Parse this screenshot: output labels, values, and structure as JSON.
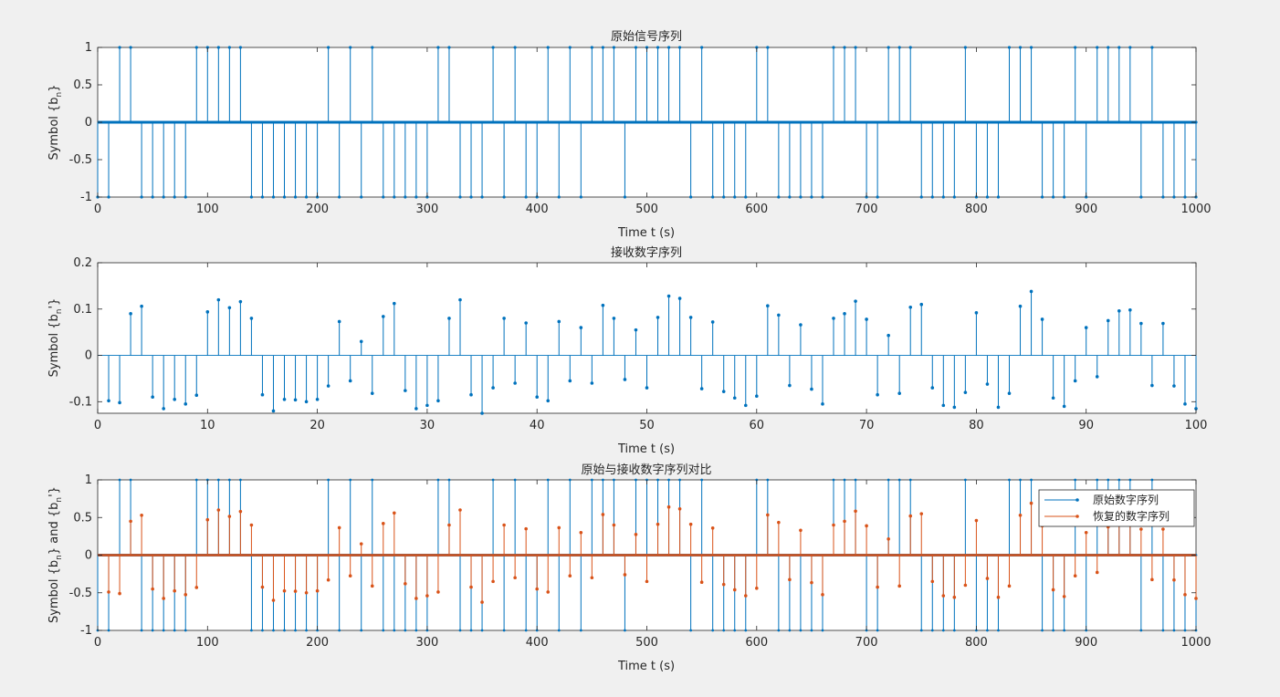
{
  "chart_data": [
    {
      "type": "stem",
      "title": "原始信号序列",
      "xlabel": "Time t (s)",
      "ylabel_main": "Symbol {b",
      "ylabel_sub": "n",
      "ylabel_tail": "}",
      "xlim": [
        0,
        1000
      ],
      "ylim": [
        -1,
        1
      ],
      "xticks": [
        0,
        100,
        200,
        300,
        400,
        500,
        600,
        700,
        800,
        900,
        1000
      ],
      "yticks": [
        -1,
        -0.5,
        0,
        0.5,
        1
      ],
      "ytick_labels": [
        "-1",
        "-0.5",
        "0",
        "0.5",
        "1"
      ],
      "color": "#0072bd",
      "series": [
        {
          "sample_step": 10,
          "samples_per_symbol": 10,
          "x_start": 0,
          "values": [
            -1,
            -1,
            1,
            1,
            -1,
            -1,
            -1,
            -1,
            -1,
            1,
            1,
            1,
            1,
            1,
            -1,
            -1,
            -1,
            -1,
            -1,
            -1,
            -1,
            1,
            -1,
            1,
            -1,
            1,
            -1,
            -1,
            -1,
            -1,
            -1,
            1,
            1,
            -1,
            -1,
            -1,
            1,
            -1,
            1,
            -1,
            -1,
            1,
            -1,
            1,
            -1,
            1,
            1,
            1,
            -1,
            1,
            1,
            1,
            1,
            1,
            -1,
            1,
            -1,
            -1,
            -1,
            -1,
            1,
            1,
            -1,
            -1,
            -1,
            -1,
            -1,
            1,
            1,
            1,
            -1,
            -1,
            1,
            1,
            1,
            -1,
            -1,
            -1,
            -1,
            1,
            -1,
            -1,
            -1,
            1,
            1,
            1,
            -1,
            -1,
            -1,
            1,
            -1,
            1,
            1,
            1,
            1,
            -1,
            1,
            -1,
            -1,
            -1,
            -1
          ]
        }
      ]
    },
    {
      "type": "stem",
      "title": "接收数字序列",
      "xlabel": "Time t (s)",
      "ylabel_main": "Symbol {b",
      "ylabel_sub": "n",
      "ylabel_tail": "'}",
      "xlim": [
        0,
        100
      ],
      "ylim": [
        -0.125,
        0.2
      ],
      "xticks": [
        0,
        10,
        20,
        30,
        40,
        50,
        60,
        70,
        80,
        90,
        100
      ],
      "yticks": [
        -0.1,
        0,
        0.1,
        0.2
      ],
      "ytick_labels": [
        "-0.1",
        "0",
        "0.1",
        "0.2"
      ],
      "color": "#0072bd",
      "series": [
        {
          "x_start": 1,
          "sample_step": 1,
          "values": [
            -0.098,
            -0.102,
            0.09,
            0.106,
            -0.09,
            -0.115,
            -0.095,
            -0.105,
            -0.086,
            0.094,
            0.12,
            0.103,
            0.116,
            0.08,
            -0.085,
            -0.12,
            -0.095,
            -0.096,
            -0.1,
            -0.095,
            -0.066,
            0.073,
            -0.055,
            0.03,
            -0.082,
            0.084,
            0.112,
            -0.076,
            -0.115,
            -0.108,
            -0.098,
            0.08,
            0.12,
            -0.085,
            -0.125,
            -0.07,
            0.08,
            -0.06,
            0.07,
            -0.09,
            -0.098,
            0.073,
            -0.055,
            0.06,
            -0.06,
            0.108,
            0.08,
            -0.052,
            0.055,
            -0.07,
            0.082,
            0.128,
            0.123,
            0.082,
            -0.072,
            0.072,
            -0.078,
            -0.092,
            -0.108,
            -0.088,
            0.107,
            0.087,
            -0.065,
            0.066,
            -0.073,
            -0.105,
            0.08,
            0.09,
            0.117,
            0.078,
            -0.085,
            0.043,
            -0.082,
            0.104,
            0.11,
            -0.07,
            -0.108,
            -0.112,
            -0.08,
            0.092,
            -0.062,
            -0.112,
            -0.082,
            0.106,
            0.138,
            0.078,
            -0.092,
            -0.11,
            -0.055,
            0.06,
            -0.046,
            0.075,
            0.096,
            0.098,
            0.069,
            -0.065,
            0.069,
            -0.066,
            -0.105,
            -0.115
          ]
        }
      ]
    },
    {
      "type": "stem",
      "title": "原始与接收数字序列对比",
      "xlabel": "Time t (s)",
      "ylabel_main": "Symbol {b",
      "ylabel_sub": "n",
      "ylabel_mid": "} and {b",
      "ylabel_sub2": "n",
      "ylabel_tail": "'}",
      "xlim": [
        0,
        1000
      ],
      "ylim": [
        -1,
        1
      ],
      "xticks": [
        0,
        100,
        200,
        300,
        400,
        500,
        600,
        700,
        800,
        900,
        1000
      ],
      "yticks": [
        -1,
        -0.5,
        0,
        0.5,
        1
      ],
      "ytick_labels": [
        "-1",
        "-0.5",
        "0",
        "0.5",
        "1"
      ],
      "legend_position": "top-right",
      "series": [
        {
          "name": "原始数字序列",
          "color": "#0072bd",
          "ref": "original",
          "sample_step": 10,
          "x_start": 0
        },
        {
          "name": "恢复的数字序列",
          "color": "#d95319",
          "ref": "recovered",
          "gain": 5,
          "sample_step": 10,
          "x_start": 10
        }
      ]
    }
  ]
}
